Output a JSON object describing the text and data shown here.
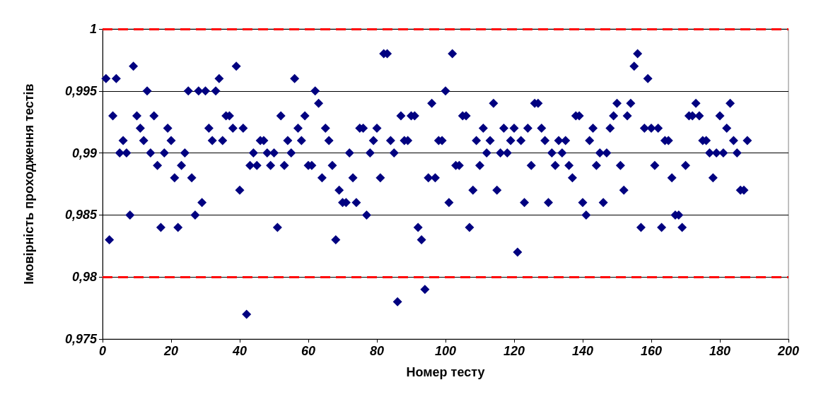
{
  "chart_data": {
    "type": "scatter",
    "xlabel": "Номер тесту",
    "ylabel": "Імовірність проходження тестів",
    "x": [
      1,
      2,
      3,
      4,
      5,
      6,
      7,
      8,
      9,
      10,
      11,
      12,
      13,
      14,
      15,
      16,
      17,
      18,
      19,
      20,
      21,
      22,
      23,
      24,
      25,
      26,
      27,
      28,
      29,
      30,
      31,
      32,
      33,
      34,
      35,
      36,
      37,
      38,
      39,
      40,
      41,
      42,
      43,
      44,
      45,
      46,
      47,
      48,
      49,
      50,
      51,
      52,
      53,
      54,
      55,
      56,
      57,
      58,
      59,
      60,
      61,
      62,
      63,
      64,
      65,
      66,
      67,
      68,
      69,
      70,
      71,
      72,
      73,
      74,
      75,
      76,
      77,
      78,
      79,
      80,
      81,
      82,
      83,
      84,
      85,
      86,
      87,
      88,
      89,
      90,
      91,
      92,
      93,
      94,
      95,
      96,
      97,
      98,
      99,
      100,
      101,
      102,
      103,
      104,
      105,
      106,
      107,
      108,
      109,
      110,
      111,
      112,
      113,
      114,
      115,
      116,
      117,
      118,
      119,
      120,
      121,
      122,
      123,
      124,
      125,
      126,
      127,
      128,
      129,
      130,
      131,
      132,
      133,
      134,
      135,
      136,
      137,
      138,
      139,
      140,
      141,
      142,
      143,
      144,
      145,
      146,
      147,
      148,
      149,
      150,
      151,
      152,
      153,
      154,
      155,
      156,
      157,
      158,
      159,
      160,
      161,
      162,
      163,
      164,
      165,
      166,
      167,
      168,
      169,
      170,
      171,
      172,
      173,
      174,
      175,
      176,
      177,
      178,
      179,
      180,
      181,
      182,
      183,
      184,
      185,
      186,
      187,
      188
    ],
    "series": [
      {
        "color": "#000080",
        "values": [
          0.996,
          0.983,
          0.993,
          0.996,
          0.99,
          0.991,
          0.99,
          0.985,
          0.997,
          0.993,
          0.992,
          0.991,
          0.995,
          0.99,
          0.993,
          0.989,
          0.984,
          0.99,
          0.992,
          0.991,
          0.988,
          0.984,
          0.989,
          0.99,
          0.995,
          0.988,
          0.985,
          0.995,
          0.986,
          0.995,
          0.992,
          0.991,
          0.995,
          0.996,
          0.991,
          0.993,
          0.993,
          0.992,
          0.997,
          0.987,
          0.992,
          0.977,
          0.989,
          0.99,
          0.989,
          0.991,
          0.991,
          0.99,
          0.989,
          0.99,
          0.984,
          0.993,
          0.989,
          0.991,
          0.99,
          0.996,
          0.992,
          0.991,
          0.993,
          0.989,
          0.989,
          0.995,
          0.994,
          0.988,
          0.992,
          0.991,
          0.989,
          0.983,
          0.987,
          0.986,
          0.986,
          0.99,
          0.988,
          0.986,
          0.992,
          0.992,
          0.985,
          0.99,
          0.991,
          0.992,
          0.988,
          0.998,
          0.998,
          0.991,
          0.99,
          0.978,
          0.993,
          0.991,
          0.991,
          0.993,
          0.993,
          0.984,
          0.983,
          0.979,
          0.988,
          0.994,
          0.988,
          0.991,
          0.991,
          0.995,
          0.986,
          0.998,
          0.989,
          0.989,
          0.993,
          0.993,
          0.984,
          0.987,
          0.991,
          0.989,
          0.992,
          0.99,
          0.991,
          0.994,
          0.987,
          0.99,
          0.992,
          0.99,
          0.991,
          0.992,
          0.982,
          0.991,
          0.986,
          0.992,
          0.989,
          0.994,
          0.994,
          0.992,
          0.991,
          0.986,
          0.99,
          0.989,
          0.991,
          0.99,
          0.991,
          0.989,
          0.988,
          0.993,
          0.993,
          0.986,
          0.985,
          0.991,
          0.992,
          0.989,
          0.99,
          0.986,
          0.99,
          0.992,
          0.993,
          0.994,
          0.989,
          0.987,
          0.993,
          0.994,
          0.997,
          0.998,
          0.984,
          0.992,
          0.996,
          0.992,
          0.989,
          0.992,
          0.984,
          0.991,
          0.991,
          0.988,
          0.985,
          0.985,
          0.984,
          0.989,
          0.993,
          0.993,
          0.994,
          0.993,
          0.991,
          0.991,
          0.99,
          0.988,
          0.99,
          0.993,
          0.99,
          0.992,
          0.994,
          0.991,
          0.99,
          0.987,
          0.987,
          0.991
        ]
      }
    ],
    "xlim": [
      0,
      200
    ],
    "xticks": [
      0,
      20,
      40,
      60,
      80,
      100,
      120,
      140,
      160,
      180,
      200
    ],
    "ylim": [
      0.975,
      1
    ],
    "yticks": [
      {
        "value": 0.975,
        "label": "0,975"
      },
      {
        "value": 0.98,
        "label": "0,98"
      },
      {
        "value": 0.985,
        "label": "0,985"
      },
      {
        "value": 0.99,
        "label": "0,99"
      },
      {
        "value": 0.995,
        "label": "0,995"
      },
      {
        "value": 1,
        "label": "1"
      }
    ],
    "ref_lines": [
      {
        "axis": "y",
        "value": 1,
        "color": "#ff0000",
        "line_style": "dashed"
      },
      {
        "axis": "y",
        "value": 0.98,
        "color": "#ff0000",
        "line_style": "dashed"
      }
    ],
    "grid": "y",
    "marker": "diamond"
  }
}
